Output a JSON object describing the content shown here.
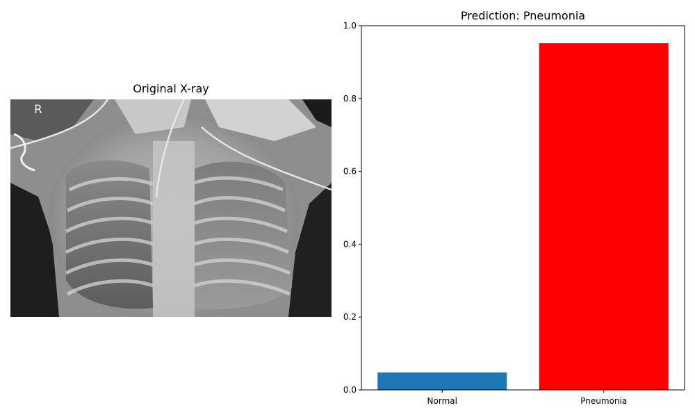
{
  "figure": {
    "left_panel": {
      "title": "Original X-ray",
      "marker": "R"
    },
    "right_panel": {
      "title": "Prediction: Pneumonia"
    }
  },
  "chart_data": {
    "type": "bar",
    "title": "Prediction: Pneumonia",
    "xlabel": "",
    "ylabel": "",
    "categories": [
      "Normal",
      "Pneumonia"
    ],
    "values": [
      0.048,
      0.952
    ],
    "colors": [
      "#1f77b4",
      "#ff0000"
    ],
    "ylim": [
      0,
      1.0
    ],
    "yticks": [
      "0.0",
      "0.2",
      "0.4",
      "0.6",
      "0.8",
      "1.0"
    ],
    "grid": false,
    "legend": "none"
  }
}
